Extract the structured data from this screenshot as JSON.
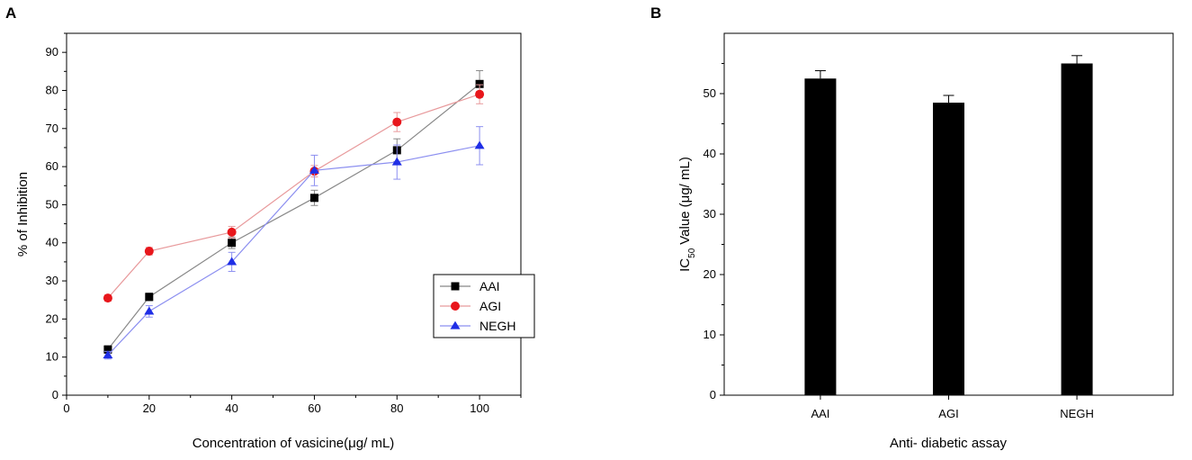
{
  "panels": {
    "a_label": "A",
    "b_label": "B"
  },
  "chart_data": [
    {
      "type": "line",
      "panel": "A",
      "xlabel": "Concentration of vasicine(μg/ mL)",
      "ylabel": "% of Inhibition",
      "xlim": [
        0,
        110
      ],
      "ylim": [
        0,
        95
      ],
      "xticks": [
        0,
        20,
        40,
        60,
        80,
        100
      ],
      "yticks": [
        0,
        10,
        20,
        30,
        40,
        50,
        60,
        70,
        80,
        90
      ],
      "x": [
        10,
        20,
        40,
        60,
        80,
        100
      ],
      "legend_position": "lower-right",
      "series": [
        {
          "name": "AAI",
          "marker": "square",
          "color": "#000000",
          "line_color": "#888888",
          "values": [
            12,
            25.8,
            40,
            51.8,
            64.3,
            81.7
          ],
          "errors": [
            1,
            1,
            1.5,
            2,
            3,
            3.5
          ]
        },
        {
          "name": "AGI",
          "marker": "circle",
          "color": "#e8161b",
          "line_color": "#e89a9c",
          "values": [
            25.5,
            37.8,
            42.8,
            58.8,
            71.7,
            79
          ],
          "errors": [
            0.8,
            1,
            1.5,
            1.5,
            2.5,
            2.5
          ]
        },
        {
          "name": "NEGH",
          "marker": "triangle",
          "color": "#1f2ee6",
          "line_color": "#8c8ff0",
          "values": [
            10.5,
            22,
            35,
            59,
            61.2,
            65.5
          ],
          "errors": [
            1,
            1.5,
            2.5,
            4,
            4.5,
            5
          ]
        }
      ]
    },
    {
      "type": "bar",
      "panel": "B",
      "xlabel": "Anti- diabetic assay",
      "ylabel_main": "IC",
      "ylabel_sub": "50",
      "ylabel_rest": "Value (μg/ mL)",
      "categories": [
        "AAI",
        "AGI",
        "NEGH"
      ],
      "values": [
        52.5,
        48.5,
        55
      ],
      "errors": [
        1.3,
        1.2,
        1.3
      ],
      "ylim": [
        0,
        60
      ],
      "yticks": [
        0,
        10,
        20,
        30,
        40,
        50
      ],
      "bar_color": "#000000"
    }
  ]
}
